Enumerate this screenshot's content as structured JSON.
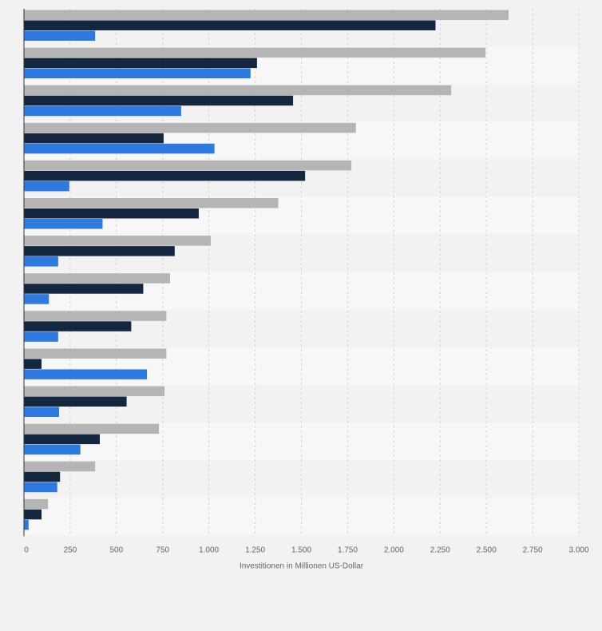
{
  "chart_data": {
    "type": "bar",
    "orientation": "horizontal",
    "title": "",
    "xlabel": "Investitionen in Millionen US-Dollar",
    "ylabel": "",
    "xlim": [
      0,
      3000
    ],
    "x_ticks": [
      0,
      250,
      500,
      750,
      1000,
      1250,
      1500,
      1750,
      2000,
      2250,
      2500,
      2750,
      3000
    ],
    "x_tick_labels": [
      "0",
      "250",
      "500",
      "750",
      "1.000",
      "1.250",
      "1.500",
      "1.750",
      "2.000",
      "2.250",
      "2.500",
      "2.750",
      "3.000"
    ],
    "grid": "vertical dashed",
    "legend": "none",
    "colors": {
      "series_1": "#b5b5b5",
      "series_2": "#14273f",
      "series_3": "#2f7ae0",
      "band_dark": "#f2f2f2",
      "band_light": "#f7f7f7",
      "axis": "#333333",
      "grid": "#d5d5d5",
      "text": "#666666"
    },
    "categories": [
      "",
      "",
      "",
      "",
      "",
      "",
      "",
      "",
      "",
      "",
      "",
      "",
      "",
      ""
    ],
    "series": [
      {
        "color": "#b5b5b5",
        "values": [
          2620,
          2495,
          2310,
          1795,
          1770,
          1375,
          1010,
          790,
          770,
          770,
          760,
          730,
          385,
          130
        ]
      },
      {
        "color": "#14273f",
        "values": [
          2225,
          1260,
          1455,
          755,
          1520,
          945,
          815,
          645,
          580,
          95,
          555,
          410,
          195,
          95
        ]
      },
      {
        "color": "#2f7ae0",
        "values": [
          385,
          1225,
          850,
          1030,
          245,
          425,
          185,
          135,
          185,
          665,
          190,
          305,
          180,
          25
        ]
      }
    ]
  }
}
